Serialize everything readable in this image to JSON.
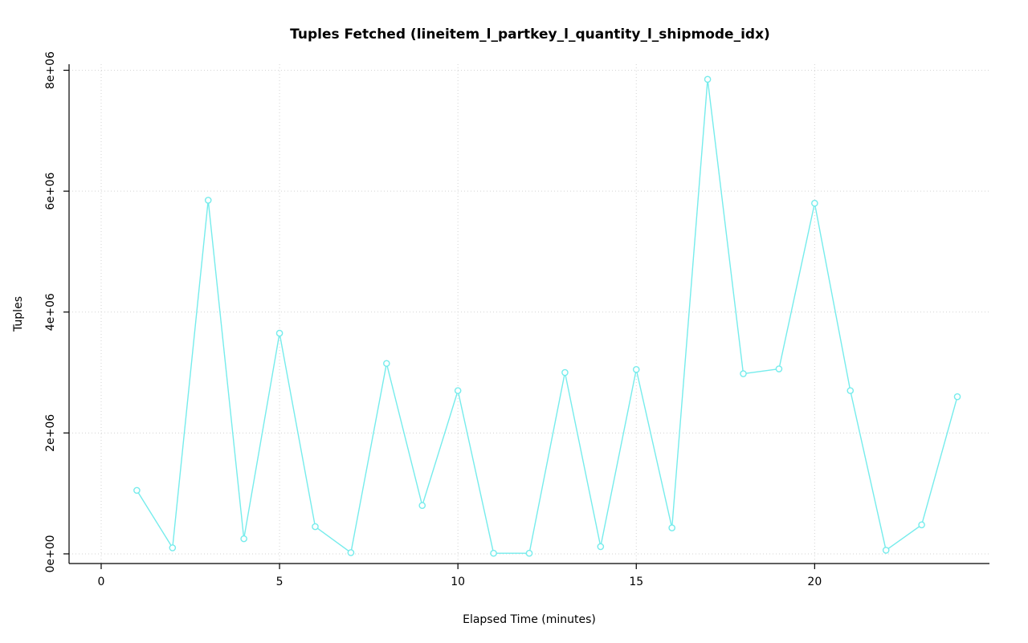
{
  "chart_data": {
    "type": "line",
    "title": "Tuples Fetched (lineitem_l_partkey_l_quantity_l_shipmode_idx)",
    "xlabel": "Elapsed Time (minutes)",
    "ylabel": "Tuples",
    "x": [
      1,
      2,
      3,
      4,
      5,
      6,
      7,
      8,
      9,
      10,
      11,
      12,
      13,
      14,
      15,
      16,
      17,
      18,
      19,
      20,
      21,
      22,
      23,
      24
    ],
    "y": [
      1050000,
      100000,
      5850000,
      250000,
      3650000,
      450000,
      20000,
      3150000,
      800000,
      2700000,
      10000,
      10000,
      3000000,
      120000,
      3050000,
      430000,
      7850000,
      2980000,
      3060000,
      5800000,
      2700000,
      60000,
      480000,
      2600000
    ],
    "xlim": [
      -0.9,
      24.9
    ],
    "ylim": [
      -160000,
      8100000
    ],
    "xticks": [
      0,
      5,
      10,
      15,
      20
    ],
    "xtick_labels": [
      "0",
      "5",
      "10",
      "15",
      "20"
    ],
    "yticks": [
      0,
      2000000,
      4000000,
      6000000,
      8000000
    ],
    "ytick_labels": [
      "0e+00",
      "2e+06",
      "4e+06",
      "6e+06",
      "8e+06"
    ],
    "grid": "dotted",
    "legend": "none",
    "marker": "open-circle",
    "line_color": "#76ecec",
    "grid_color": "#d3d3d3",
    "axis_color": "#000000",
    "text_color": "#000000",
    "background": "#ffffff"
  }
}
